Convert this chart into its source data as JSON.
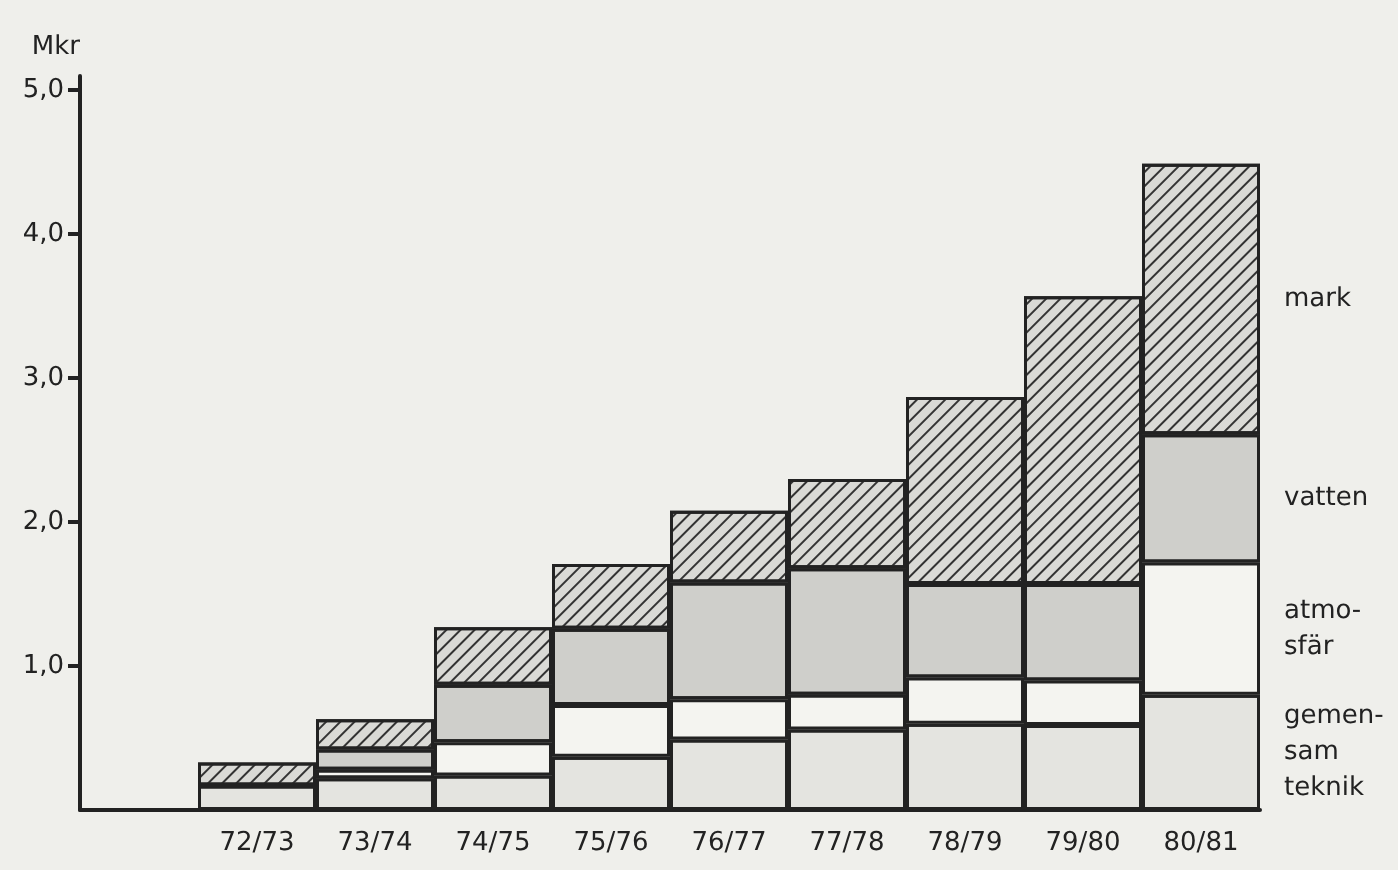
{
  "chart_data": {
    "type": "bar",
    "stacked": true,
    "ylabel": "Mkr",
    "categories": [
      null,
      "72/73",
      "73/74",
      "74/75",
      "75/76",
      "76/77",
      "77/78",
      "78/79",
      "79/80",
      "80/81"
    ],
    "series": [
      {
        "name": "gemen-\nsam\nteknik",
        "color": "#e4e4e0",
        "values": [
          null,
          0.17,
          0.22,
          0.24,
          0.37,
          0.49,
          0.56,
          0.6,
          0.59,
          0.8
        ]
      },
      {
        "name": "atmo-\nsfär",
        "color": "#f4f4f0",
        "values": [
          null,
          0,
          0.06,
          0.23,
          0.36,
          0.28,
          0.24,
          0.32,
          0.31,
          0.92
        ]
      },
      {
        "name": "vatten",
        "color": "#cfcfcb",
        "values": [
          null,
          0,
          0.14,
          0.4,
          0.53,
          0.81,
          0.88,
          0.65,
          0.67,
          0.89
        ]
      },
      {
        "name": "mark",
        "color": "#dadad6",
        "values": [
          null,
          0.16,
          0.21,
          0.4,
          0.45,
          0.5,
          0.62,
          1.3,
          2.0,
          1.88
        ]
      }
    ],
    "ylim": [
      0,
      5.1
    ],
    "yticks": [
      {
        "value": 1,
        "label": "1,0"
      },
      {
        "value": 2,
        "label": "2,0"
      },
      {
        "value": 3,
        "label": "3,0"
      },
      {
        "value": 4,
        "label": "4,0"
      },
      {
        "value": 5,
        "label": "5,0"
      }
    ],
    "grid": false,
    "legend": false
  }
}
